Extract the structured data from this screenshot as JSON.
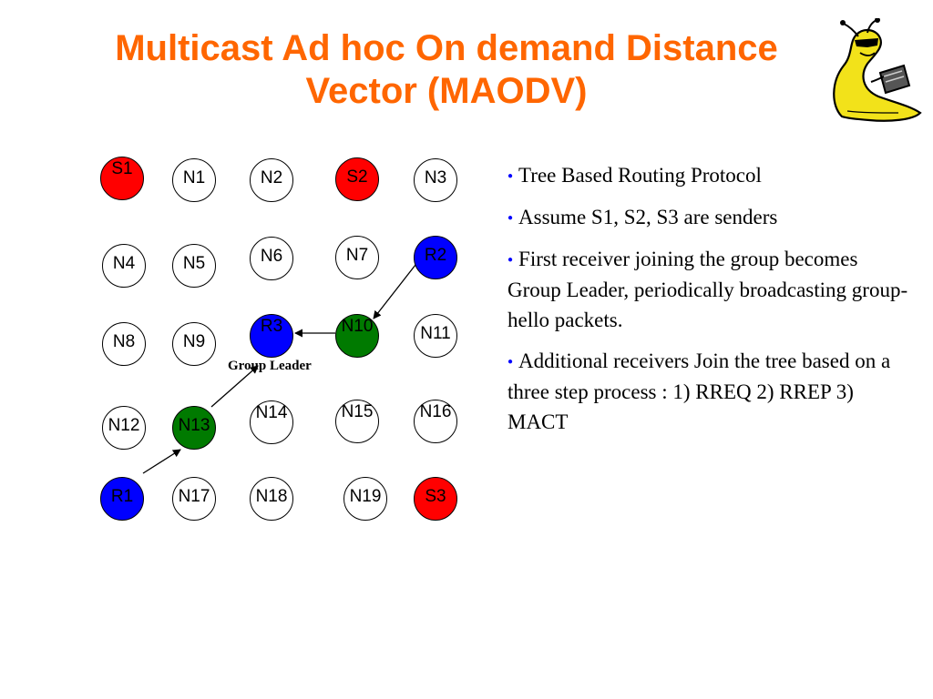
{
  "slide": {
    "title_line1": "Multicast Ad hoc On demand Distance",
    "title_line2": "Vector (MAODV)"
  },
  "diagram": {
    "nodes": [
      {
        "id": "S1",
        "label": "S1",
        "role": "sender"
      },
      {
        "id": "N1",
        "label": "N1",
        "role": "node"
      },
      {
        "id": "N2",
        "label": "N2",
        "role": "node"
      },
      {
        "id": "S2",
        "label": "S2",
        "role": "sender"
      },
      {
        "id": "N3",
        "label": "N3",
        "role": "node"
      },
      {
        "id": "N4",
        "label": "N4",
        "role": "node"
      },
      {
        "id": "N5",
        "label": "N5",
        "role": "node"
      },
      {
        "id": "N6",
        "label": "N6",
        "role": "node"
      },
      {
        "id": "N7",
        "label": "N7",
        "role": "node"
      },
      {
        "id": "R2",
        "label": "R2",
        "role": "receiver"
      },
      {
        "id": "N8",
        "label": "N8",
        "role": "node"
      },
      {
        "id": "N9",
        "label": "N9",
        "role": "node"
      },
      {
        "id": "R3",
        "label": "R3",
        "role": "receiver"
      },
      {
        "id": "N10",
        "label": "N10",
        "role": "tree-node"
      },
      {
        "id": "N11",
        "label": "N11",
        "role": "node"
      },
      {
        "id": "N12",
        "label": "N12",
        "role": "node"
      },
      {
        "id": "N13",
        "label": "N13",
        "role": "tree-node"
      },
      {
        "id": "N14",
        "label": "N14",
        "role": "node"
      },
      {
        "id": "N15",
        "label": "N15",
        "role": "node"
      },
      {
        "id": "N16",
        "label": "N16",
        "role": "node"
      },
      {
        "id": "R1",
        "label": "R1",
        "role": "receiver"
      },
      {
        "id": "N17",
        "label": "N17",
        "role": "node"
      },
      {
        "id": "N18",
        "label": "N18",
        "role": "node"
      },
      {
        "id": "N19",
        "label": "N19",
        "role": "node"
      },
      {
        "id": "S3",
        "label": "S3",
        "role": "sender"
      }
    ],
    "edges": [
      {
        "from": "R2",
        "to": "N10"
      },
      {
        "from": "N10",
        "to": "R3"
      },
      {
        "from": "R1",
        "to": "N13"
      },
      {
        "from": "N13",
        "to": "R3"
      }
    ],
    "group_leader_label": "Group Leader",
    "colors": {
      "sender": "#ff0000",
      "receiver": "#0000ff",
      "tree_node": "#007a00",
      "title": "#ff6600",
      "bullet": "#0000ff"
    }
  },
  "bullets": [
    {
      "text": "Tree Based Routing Protocol"
    },
    {
      "text": "Assume S1, S2, S3 are senders"
    },
    {
      "text": "First receiver joining the group becomes Group Leader, periodically broadcasting group-hello packets."
    },
    {
      "text": "Additional receivers Join the tree based on a three step process : 1) RREQ 2) RREP 3) MACT"
    }
  ],
  "icons": {
    "mascot": "slug-mascot-icon",
    "bullet": "bullet-dot-icon"
  }
}
